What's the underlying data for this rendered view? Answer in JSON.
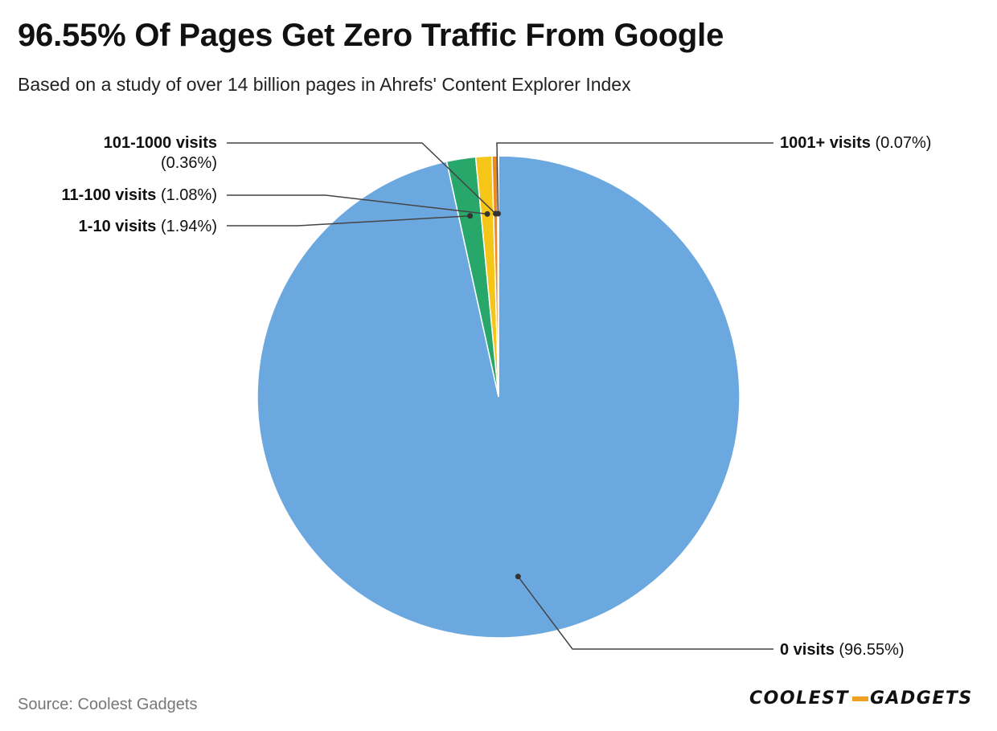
{
  "title": "96.55% Of Pages Get Zero Traffic From Google",
  "subtitle": "Based on a study of over 14 billion pages in Ahrefs' Content Explorer Index",
  "source": "Source: Coolest Gadgets",
  "logo": {
    "left": "COOLEST",
    "right": "GADGETS"
  },
  "chart_data": {
    "type": "pie",
    "title": "96.55% Of Pages Get Zero Traffic From Google",
    "subtitle": "Based on a study of over 14 billion pages in Ahrefs' Content Explorer Index",
    "start": "12 o'clock, counter-clockwise for small slices",
    "slices": [
      {
        "name": "0 visits",
        "value": 96.55,
        "label": "(96.55%)",
        "color": "#6ca8e0"
      },
      {
        "name": "1-10 visits",
        "value": 1.94,
        "label": "(1.94%)",
        "color": "#27a76a"
      },
      {
        "name": "11-100 visits",
        "value": 1.08,
        "label": "(1.08%)",
        "color": "#f5c518"
      },
      {
        "name": "101-1000 visits",
        "value": 0.36,
        "label": "(0.36%)",
        "color": "#f08a1c"
      },
      {
        "name": "1001+ visits",
        "value": 0.07,
        "label": "(0.07%)",
        "color": "#e05a2a"
      }
    ]
  }
}
